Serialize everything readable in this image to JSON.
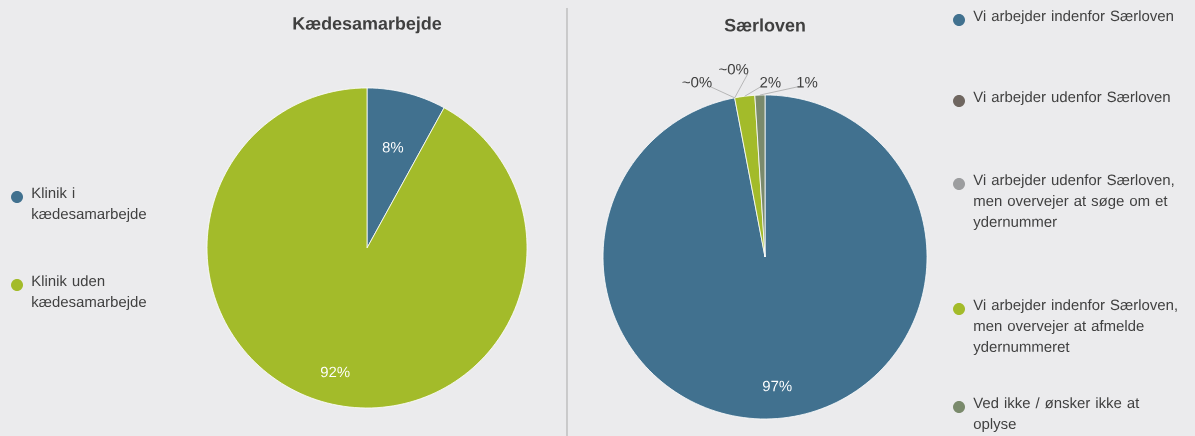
{
  "chart_data": [
    {
      "type": "pie",
      "title": "Kædesamarbejde",
      "categories": [
        "Klinik i kædesamarbejde",
        "Klinik uden kædesamarbejde"
      ],
      "values": [
        8,
        92
      ],
      "colors": [
        "#41718f",
        "#a3bb2a"
      ],
      "value_labels": [
        "8%",
        "92%"
      ],
      "legend": "left"
    },
    {
      "type": "pie",
      "title": "Særloven",
      "categories": [
        "Vi arbejder indenfor Særloven",
        "Vi arbejder udenfor Særloven",
        "Vi arbejder udenfor Særloven, men overvejer at søge om et ydernummer",
        "Vi arbejder indenfor Særloven, men overvejer at afmelde ydernummeret",
        "Ved ikke / ønsker ikke at oplyse"
      ],
      "values": [
        97,
        0,
        0,
        2,
        1
      ],
      "colors": [
        "#41718f",
        "#6f6660",
        "#9c9d9f",
        "#a3bb2a",
        "#7a8a6c"
      ],
      "value_labels": [
        "97%",
        "~0%",
        "~0%",
        "2%",
        "1%"
      ],
      "legend": "right"
    }
  ]
}
